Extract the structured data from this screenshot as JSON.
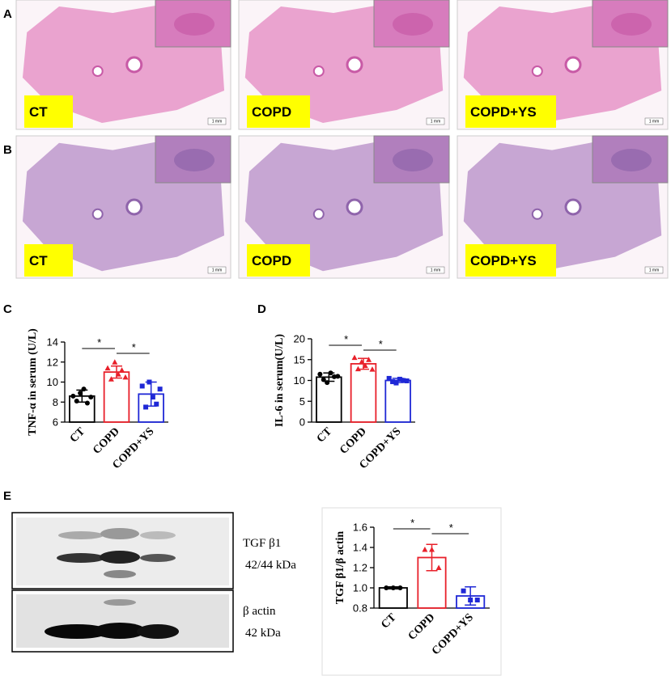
{
  "panels": {
    "row_a": {
      "letter": "A",
      "labels": [
        "CT",
        "COPD",
        "COPD+YS"
      ]
    },
    "row_b": {
      "letter": "B",
      "labels": [
        "CT",
        "COPD",
        "COPD+YS"
      ]
    },
    "scale_bar": "1 mm",
    "blot": {
      "letter": "E",
      "labels": [
        "TGF β1",
        "42/44 kDa",
        "β actin",
        "42 kDa"
      ]
    }
  },
  "chart_data": [
    {
      "type": "bar",
      "letter": "C",
      "y_label": "TNF-α in serum (U/L)",
      "categories": [
        "CT",
        "COPD",
        "COPD+YS"
      ],
      "series": [
        {
          "values": [
            8.6,
            11.0,
            8.8
          ],
          "errors": [
            0.6,
            0.6,
            1.2
          ],
          "colors": [
            "#000000",
            "#e8202a",
            "#1f28d6"
          ],
          "points": [
            [
              8.6,
              8.1,
              8.9,
              9.3,
              7.9,
              8.5
            ],
            [
              11.4,
              10.3,
              12.0,
              10.8,
              11.2,
              10.5
            ],
            [
              9.6,
              7.5,
              10.0,
              8.5,
              7.8,
              9.3
            ]
          ]
        }
      ],
      "ylim": [
        6,
        14
      ],
      "yticks": [
        6,
        8,
        10,
        12,
        14
      ],
      "annotations": [
        "*",
        "*"
      ]
    },
    {
      "type": "bar",
      "letter": "D",
      "y_label": "IL-6 in serum(U/L)",
      "categories": [
        "CT",
        "COPD",
        "COPD+YS"
      ],
      "series": [
        {
          "values": [
            10.8,
            14.0,
            10.0
          ],
          "errors": [
            1.0,
            1.3,
            0.5
          ],
          "colors": [
            "#000000",
            "#e8202a",
            "#1f28d6"
          ],
          "points": [
            [
              11.5,
              10.2,
              9.5,
              11.8,
              10.9,
              11.0
            ],
            [
              15.5,
              12.8,
              14.5,
              13.6,
              15.0,
              12.7
            ],
            [
              10.5,
              9.7,
              9.4,
              10.3,
              10.0,
              9.9
            ]
          ]
        }
      ],
      "ylim": [
        0,
        20
      ],
      "yticks": [
        0,
        5,
        10,
        15,
        20
      ],
      "annotations": [
        "*",
        "*"
      ]
    },
    {
      "type": "bar",
      "y_label": "TGF β1/β actin",
      "categories": [
        "CT",
        "COPD",
        "COPD+YS"
      ],
      "series": [
        {
          "values": [
            1.0,
            1.3,
            0.92
          ],
          "errors": [
            0.01,
            0.13,
            0.09
          ],
          "colors": [
            "#000000",
            "#e8202a",
            "#1f28d6"
          ],
          "points": [
            [
              1.0,
              1.0,
              1.0
            ],
            [
              1.38,
              1.38,
              1.2
            ],
            [
              0.97,
              0.88,
              0.88
            ]
          ]
        }
      ],
      "ylim": [
        0.8,
        1.6
      ],
      "yticks": [
        0.8,
        {
          "value": 1,
          "label": "1.0"
        },
        1.2,
        1.4,
        1.6
      ],
      "annotations": [
        "*",
        "*"
      ]
    }
  ]
}
